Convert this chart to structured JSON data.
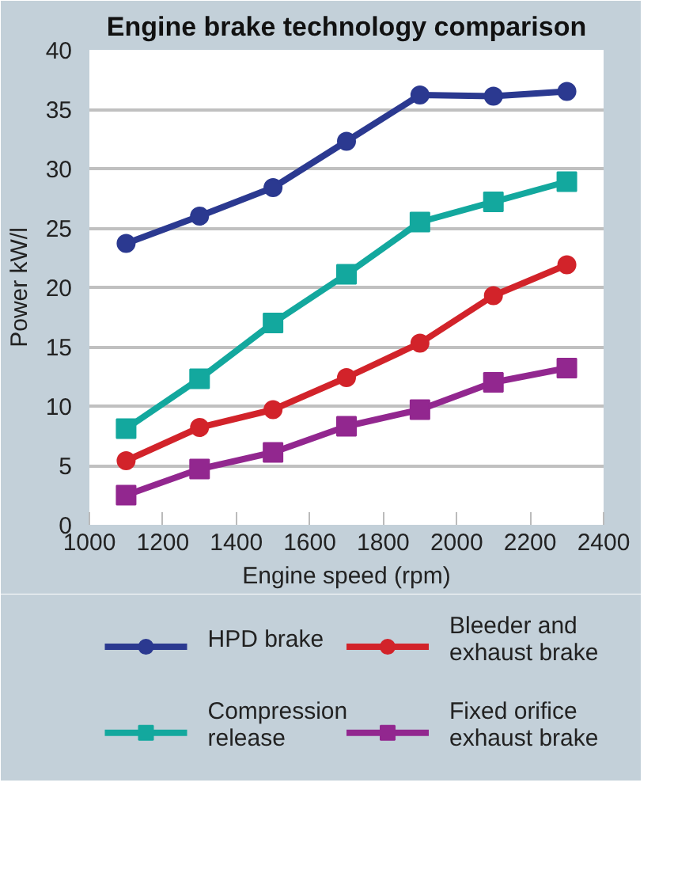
{
  "chart_data": {
    "type": "line",
    "title": "Engine brake technology comparison",
    "xlabel": "Engine speed (rpm)",
    "ylabel": "Power kW/l",
    "x": [
      1100,
      1300,
      1500,
      1700,
      1900,
      2100,
      2300
    ],
    "series": [
      {
        "name": "HPD brake",
        "color": "#2b3990",
        "marker": "circle",
        "values": [
          23.7,
          26.0,
          28.4,
          32.3,
          36.2,
          36.1,
          36.5
        ]
      },
      {
        "name": "Bleeder and exhaust brake",
        "color": "#d2232a",
        "marker": "circle",
        "values": [
          5.4,
          8.2,
          9.7,
          12.4,
          15.3,
          19.3,
          21.9
        ]
      },
      {
        "name": "Compression release",
        "color": "#13a89e",
        "marker": "square",
        "values": [
          8.1,
          12.3,
          17.0,
          21.1,
          25.5,
          27.2,
          28.9
        ]
      },
      {
        "name": "Fixed orifice exhaust brake",
        "color": "#92278f",
        "marker": "square",
        "values": [
          2.5,
          4.7,
          6.1,
          8.3,
          9.7,
          12.0,
          13.2
        ]
      }
    ],
    "xlim": [
      1000,
      2400
    ],
    "ylim": [
      0,
      40
    ],
    "xticks": [
      1000,
      1200,
      1400,
      1600,
      1800,
      2000,
      2200,
      2400
    ],
    "yticks": [
      0,
      5,
      10,
      15,
      20,
      25,
      30,
      35,
      40
    ],
    "grid": "y",
    "legend": "bottom",
    "line_style": "solid"
  }
}
